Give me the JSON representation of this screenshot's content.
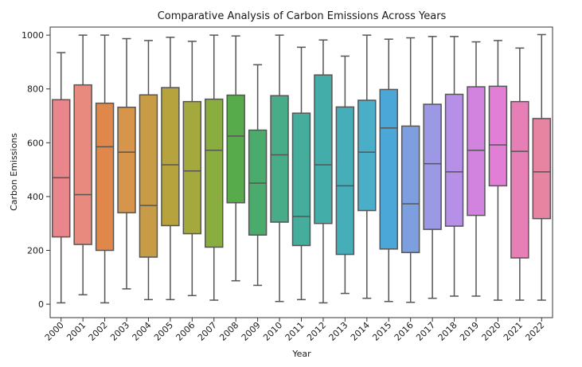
{
  "chart_data": {
    "type": "box",
    "title": "Comparative Analysis of Carbon Emissions Across Years",
    "xlabel": "Year",
    "ylabel": "Carbon Emissions",
    "ylim": [
      -50,
      1030
    ],
    "yticks": [
      0,
      200,
      400,
      600,
      800,
      1000
    ],
    "grid": false,
    "legend": "none",
    "categories": [
      "2000",
      "2001",
      "2002",
      "2003",
      "2004",
      "2005",
      "2006",
      "2007",
      "2008",
      "2009",
      "2010",
      "2011",
      "2012",
      "2013",
      "2014",
      "2015",
      "2016",
      "2017",
      "2018",
      "2019",
      "2020",
      "2021",
      "2022"
    ],
    "boxes": [
      {
        "category": "2000",
        "min": 5,
        "q1": 250,
        "median": 470,
        "q3": 760,
        "max": 935,
        "color": "#e8868c"
      },
      {
        "category": "2001",
        "min": 35,
        "q1": 222,
        "median": 407,
        "q3": 815,
        "max": 1000,
        "color": "#e98a7e"
      },
      {
        "category": "2002",
        "min": 5,
        "q1": 200,
        "median": 585,
        "q3": 747,
        "max": 1000,
        "color": "#e0884a"
      },
      {
        "category": "2003",
        "min": 57,
        "q1": 340,
        "median": 565,
        "q3": 732,
        "max": 987,
        "color": "#d6954a"
      },
      {
        "category": "2004",
        "min": 17,
        "q1": 175,
        "median": 367,
        "q3": 778,
        "max": 980,
        "color": "#c89c46"
      },
      {
        "category": "2005",
        "min": 17,
        "q1": 292,
        "median": 518,
        "q3": 805,
        "max": 992,
        "color": "#b7a33e"
      },
      {
        "category": "2006",
        "min": 32,
        "q1": 262,
        "median": 495,
        "q3": 753,
        "max": 977,
        "color": "#a3a93c"
      },
      {
        "category": "2007",
        "min": 15,
        "q1": 212,
        "median": 572,
        "q3": 762,
        "max": 1000,
        "color": "#8aad40"
      },
      {
        "category": "2008",
        "min": 87,
        "q1": 377,
        "median": 625,
        "q3": 777,
        "max": 997,
        "color": "#57ab4a"
      },
      {
        "category": "2009",
        "min": 70,
        "q1": 257,
        "median": 450,
        "q3": 647,
        "max": 890,
        "color": "#4bab6c"
      },
      {
        "category": "2010",
        "min": 10,
        "q1": 305,
        "median": 555,
        "q3": 775,
        "max": 1000,
        "color": "#48ac89"
      },
      {
        "category": "2011",
        "min": 17,
        "q1": 218,
        "median": 326,
        "q3": 710,
        "max": 955,
        "color": "#45ad9b"
      },
      {
        "category": "2012",
        "min": 5,
        "q1": 300,
        "median": 518,
        "q3": 852,
        "max": 982,
        "color": "#43adaa"
      },
      {
        "category": "2013",
        "min": 40,
        "q1": 185,
        "median": 440,
        "q3": 733,
        "max": 922,
        "color": "#45aeb9"
      },
      {
        "category": "2014",
        "min": 22,
        "q1": 348,
        "median": 565,
        "q3": 758,
        "max": 1000,
        "color": "#4aaec8"
      },
      {
        "category": "2015",
        "min": 10,
        "q1": 205,
        "median": 655,
        "q3": 798,
        "max": 985,
        "color": "#4ba7d8"
      },
      {
        "category": "2016",
        "min": 7,
        "q1": 192,
        "median": 373,
        "q3": 662,
        "max": 990,
        "color": "#7d9fe0"
      },
      {
        "category": "2017",
        "min": 22,
        "q1": 278,
        "median": 522,
        "q3": 743,
        "max": 995,
        "color": "#9d98e4"
      },
      {
        "category": "2018",
        "min": 30,
        "q1": 290,
        "median": 492,
        "q3": 780,
        "max": 995,
        "color": "#b690e6"
      },
      {
        "category": "2019",
        "min": 30,
        "q1": 330,
        "median": 572,
        "q3": 808,
        "max": 975,
        "color": "#d283e0"
      },
      {
        "category": "2020",
        "min": 15,
        "q1": 440,
        "median": 592,
        "q3": 810,
        "max": 980,
        "color": "#e27ed6"
      },
      {
        "category": "2021",
        "min": 15,
        "q1": 172,
        "median": 568,
        "q3": 753,
        "max": 952,
        "color": "#e57fb6"
      },
      {
        "category": "2022",
        "min": 15,
        "q1": 318,
        "median": 492,
        "q3": 690,
        "max": 1002,
        "color": "#e784a1"
      }
    ]
  }
}
